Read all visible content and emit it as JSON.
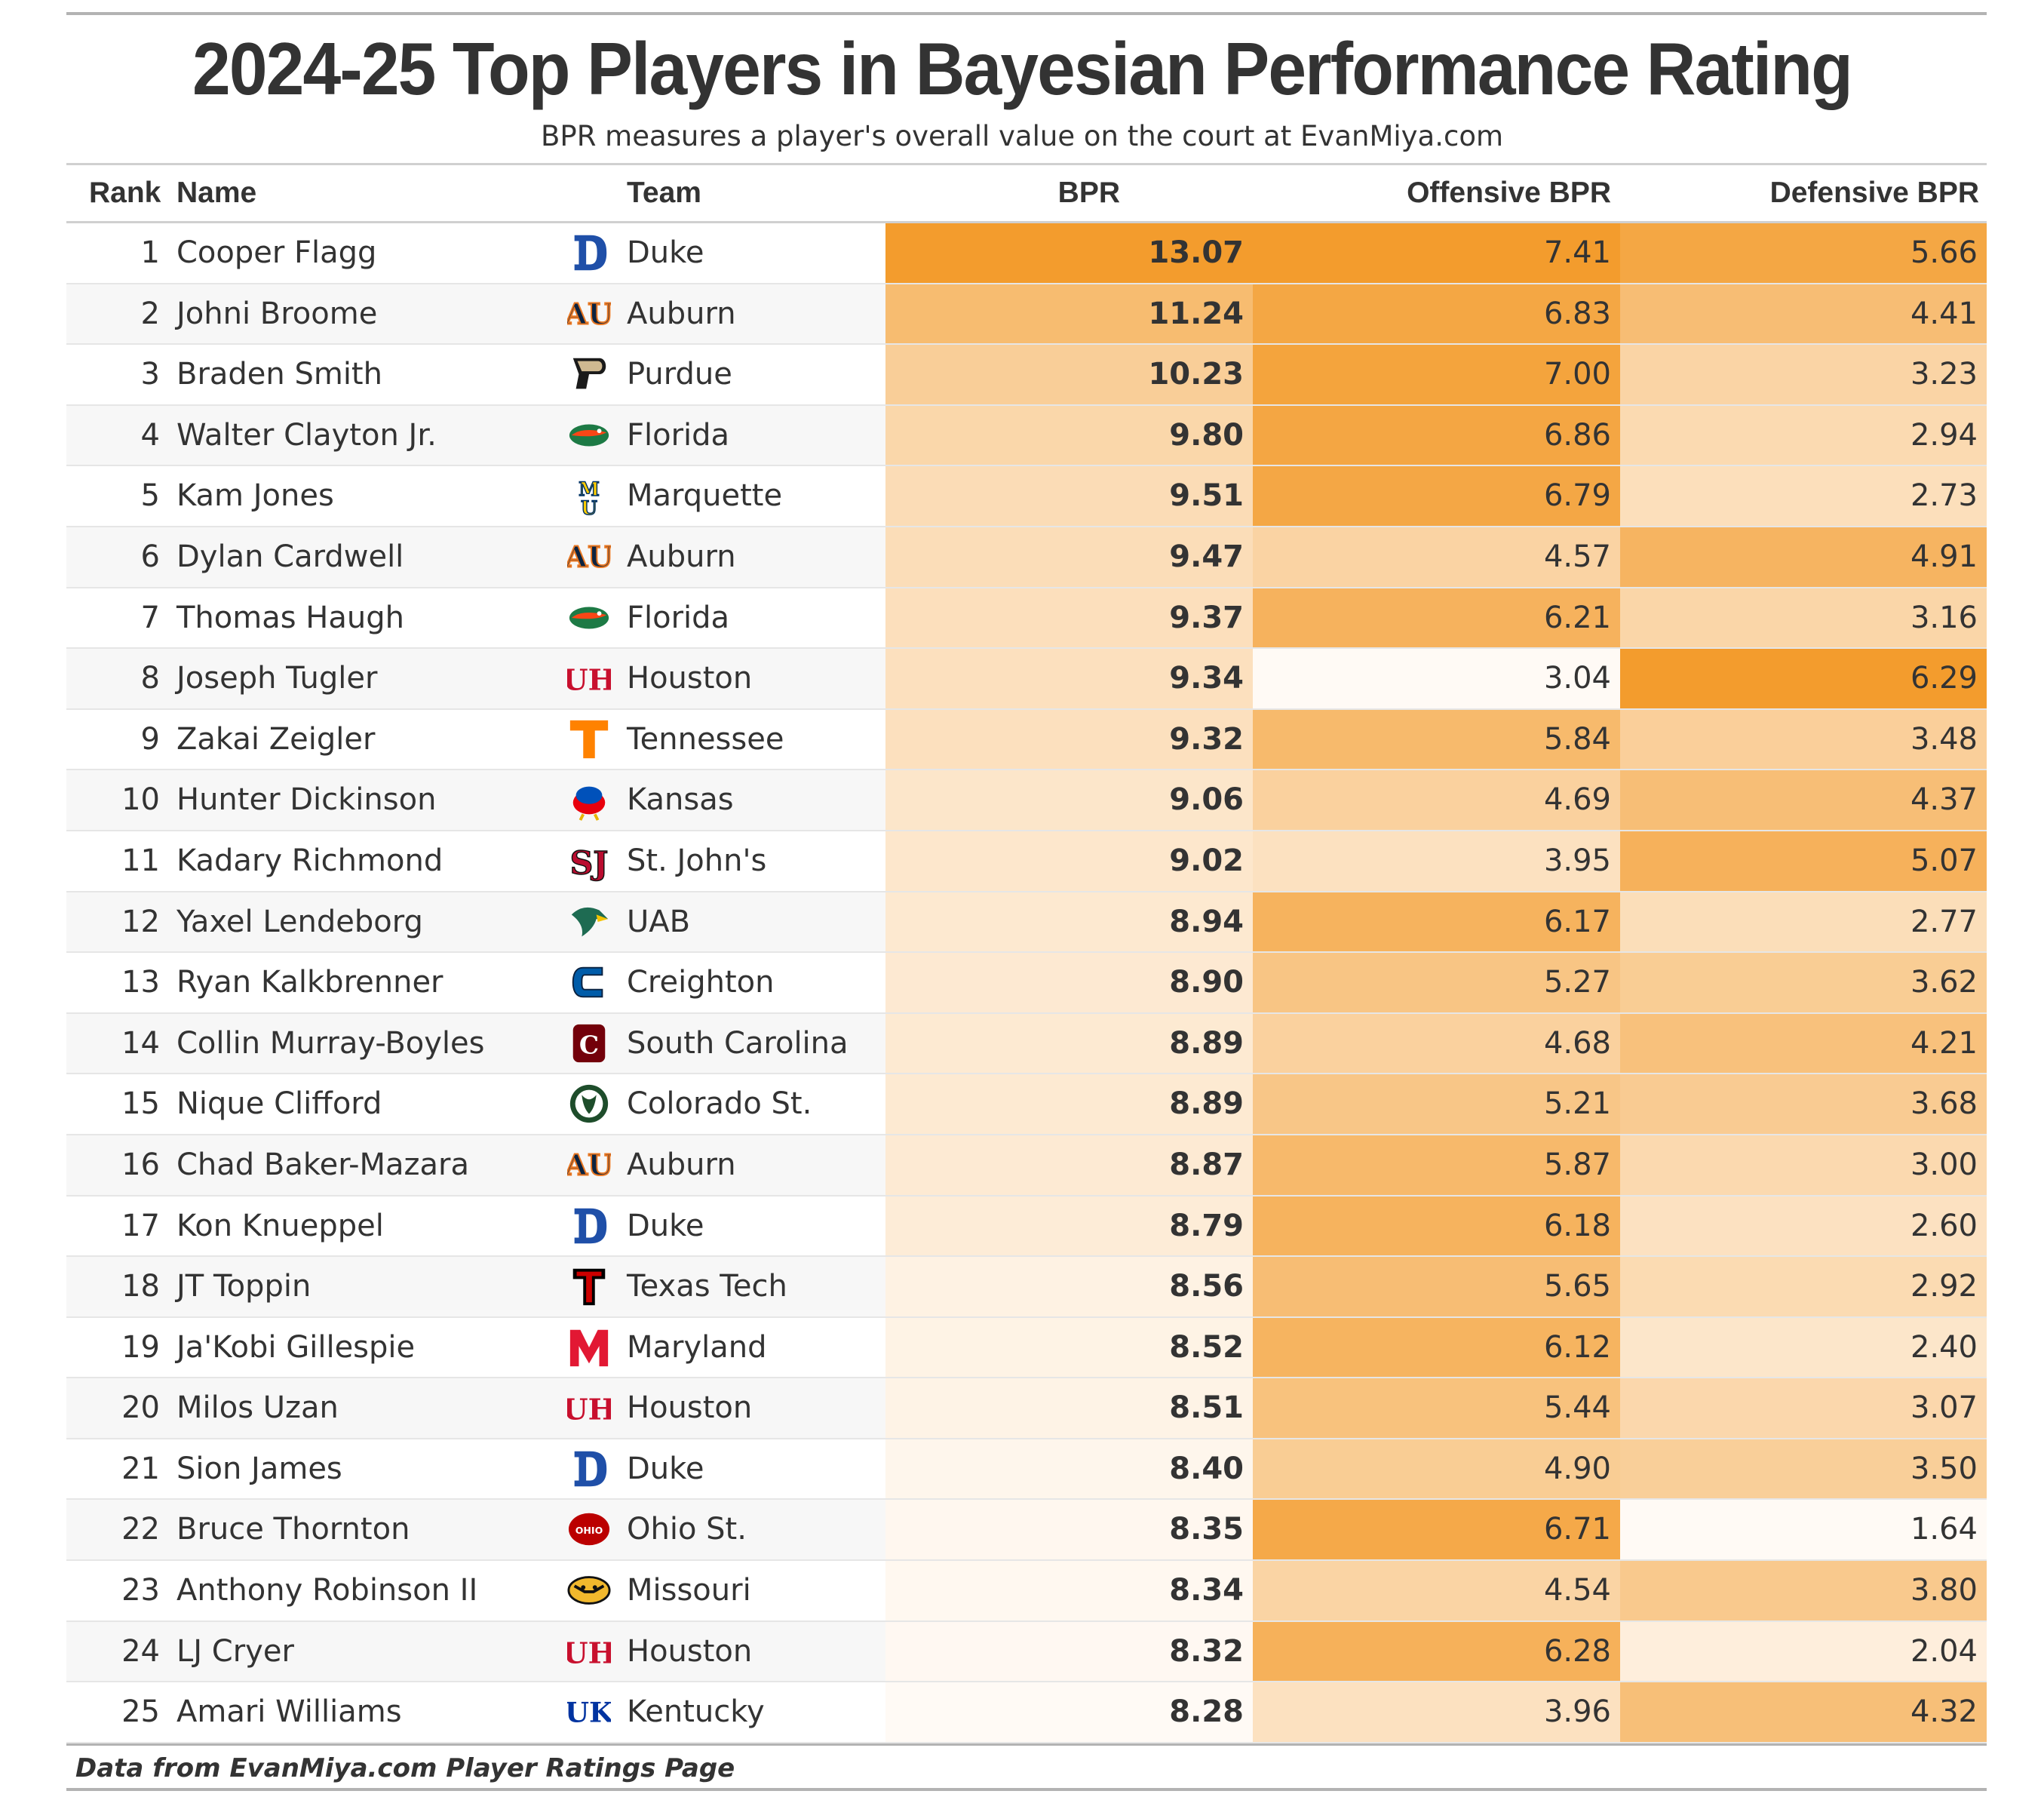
{
  "title": "2024-25 Top Players in Bayesian Performance Rating",
  "subtitle": "BPR measures a player's overall value on the court at EvanMiya.com",
  "footer": "Data from EvanMiya.com Player Ratings Page",
  "colors": {
    "low": "#fffaf5",
    "high": "#f39c2d",
    "text": "#333333",
    "rule": "#b3b3b3"
  },
  "chart_data": {
    "type": "table",
    "columns": [
      "Rank",
      "Name",
      "Team",
      "BPR",
      "Offensive BPR",
      "Defensive BPR"
    ],
    "rows": [
      {
        "rank": "1",
        "name": "Cooper Flagg",
        "team": "Duke",
        "logo": "duke-icon",
        "bpr": "13.07",
        "off": "7.41",
        "def": "5.66"
      },
      {
        "rank": "2",
        "name": "Johni Broome",
        "team": "Auburn",
        "logo": "auburn-icon",
        "bpr": "11.24",
        "off": "6.83",
        "def": "4.41"
      },
      {
        "rank": "3",
        "name": "Braden Smith",
        "team": "Purdue",
        "logo": "purdue-icon",
        "bpr": "10.23",
        "off": "7.00",
        "def": "3.23"
      },
      {
        "rank": "4",
        "name": "Walter Clayton Jr.",
        "team": "Florida",
        "logo": "florida-icon",
        "bpr": "9.80",
        "off": "6.86",
        "def": "2.94"
      },
      {
        "rank": "5",
        "name": "Kam Jones",
        "team": "Marquette",
        "logo": "marquette-icon",
        "bpr": "9.51",
        "off": "6.79",
        "def": "2.73"
      },
      {
        "rank": "6",
        "name": "Dylan Cardwell",
        "team": "Auburn",
        "logo": "auburn-icon",
        "bpr": "9.47",
        "off": "4.57",
        "def": "4.91"
      },
      {
        "rank": "7",
        "name": "Thomas Haugh",
        "team": "Florida",
        "logo": "florida-icon",
        "bpr": "9.37",
        "off": "6.21",
        "def": "3.16"
      },
      {
        "rank": "8",
        "name": "Joseph Tugler",
        "team": "Houston",
        "logo": "houston-icon",
        "bpr": "9.34",
        "off": "3.04",
        "def": "6.29"
      },
      {
        "rank": "9",
        "name": "Zakai Zeigler",
        "team": "Tennessee",
        "logo": "tennessee-icon",
        "bpr": "9.32",
        "off": "5.84",
        "def": "3.48"
      },
      {
        "rank": "10",
        "name": "Hunter Dickinson",
        "team": "Kansas",
        "logo": "kansas-icon",
        "bpr": "9.06",
        "off": "4.69",
        "def": "4.37"
      },
      {
        "rank": "11",
        "name": "Kadary Richmond",
        "team": "St. John's",
        "logo": "st-johns-icon",
        "bpr": "9.02",
        "off": "3.95",
        "def": "5.07"
      },
      {
        "rank": "12",
        "name": "Yaxel Lendeborg",
        "team": "UAB",
        "logo": "uab-icon",
        "bpr": "8.94",
        "off": "6.17",
        "def": "2.77"
      },
      {
        "rank": "13",
        "name": "Ryan Kalkbrenner",
        "team": "Creighton",
        "logo": "creighton-icon",
        "bpr": "8.90",
        "off": "5.27",
        "def": "3.62"
      },
      {
        "rank": "14",
        "name": "Collin Murray-Boyles",
        "team": "South Carolina",
        "logo": "south-carolina-icon",
        "bpr": "8.89",
        "off": "4.68",
        "def": "4.21"
      },
      {
        "rank": "15",
        "name": "Nique Clifford",
        "team": "Colorado St.",
        "logo": "colorado-st-icon",
        "bpr": "8.89",
        "off": "5.21",
        "def": "3.68"
      },
      {
        "rank": "16",
        "name": "Chad Baker-Mazara",
        "team": "Auburn",
        "logo": "auburn-icon",
        "bpr": "8.87",
        "off": "5.87",
        "def": "3.00"
      },
      {
        "rank": "17",
        "name": "Kon Knueppel",
        "team": "Duke",
        "logo": "duke-icon",
        "bpr": "8.79",
        "off": "6.18",
        "def": "2.60"
      },
      {
        "rank": "18",
        "name": "JT Toppin",
        "team": "Texas Tech",
        "logo": "texas-tech-icon",
        "bpr": "8.56",
        "off": "5.65",
        "def": "2.92"
      },
      {
        "rank": "19",
        "name": "Ja'Kobi Gillespie",
        "team": "Maryland",
        "logo": "maryland-icon",
        "bpr": "8.52",
        "off": "6.12",
        "def": "2.40"
      },
      {
        "rank": "20",
        "name": "Milos Uzan",
        "team": "Houston",
        "logo": "houston-icon",
        "bpr": "8.51",
        "off": "5.44",
        "def": "3.07"
      },
      {
        "rank": "21",
        "name": "Sion James",
        "team": "Duke",
        "logo": "duke-icon",
        "bpr": "8.40",
        "off": "4.90",
        "def": "3.50"
      },
      {
        "rank": "22",
        "name": "Bruce Thornton",
        "team": "Ohio St.",
        "logo": "ohio-st-icon",
        "bpr": "8.35",
        "off": "6.71",
        "def": "1.64"
      },
      {
        "rank": "23",
        "name": "Anthony Robinson II",
        "team": "Missouri",
        "logo": "missouri-icon",
        "bpr": "8.34",
        "off": "4.54",
        "def": "3.80"
      },
      {
        "rank": "24",
        "name": "LJ Cryer",
        "team": "Houston",
        "logo": "houston-icon",
        "bpr": "8.32",
        "off": "6.28",
        "def": "2.04"
      },
      {
        "rank": "25",
        "name": "Amari Williams",
        "team": "Kentucky",
        "logo": "kentucky-icon",
        "bpr": "8.28",
        "off": "3.96",
        "def": "4.32"
      }
    ]
  }
}
